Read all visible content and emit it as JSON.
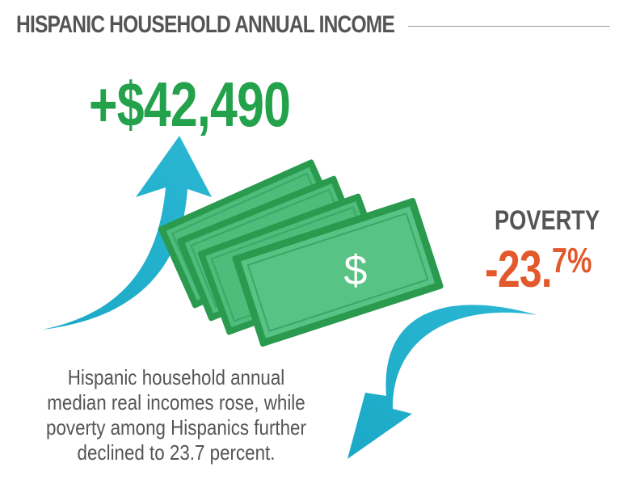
{
  "header": {
    "title": "HISPANIC HOUSEHOLD ANNUAL INCOME"
  },
  "income": {
    "value": "+$42,490",
    "color": "#23a14b"
  },
  "poverty": {
    "label": "POVERTY",
    "value_main": "-23.",
    "value_decimal": "7%",
    "color": "#e2592c"
  },
  "caption": {
    "text": "Hispanic household annual median real incomes rose, while poverty among Hispanics further declined to 23.7 percent."
  },
  "illustration": {
    "money_icon": "dollar-bills-icon",
    "bill_symbol": "$",
    "up_arrow_icon": "curved-up-arrow-icon",
    "down_arrow_icon": "curved-down-arrow-icon",
    "arrow_color": "#1aa9c6",
    "bill_color": "#4ebd7b",
    "bill_border_color": "#2a9a4f"
  }
}
